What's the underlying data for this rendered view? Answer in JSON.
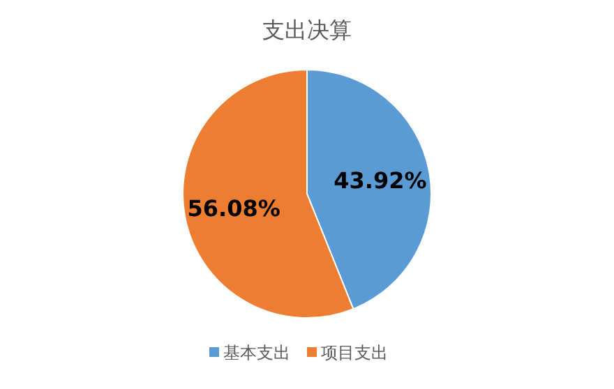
{
  "chart_data": {
    "type": "pie",
    "title": "支出决算",
    "categories": [
      "基本支出",
      "项目支出"
    ],
    "values": [
      43.92,
      56.08
    ],
    "colors": [
      "#5b9bd5",
      "#ed7d31"
    ],
    "value_labels": [
      "43.92%",
      "56.08%"
    ],
    "legend": "bottom"
  }
}
